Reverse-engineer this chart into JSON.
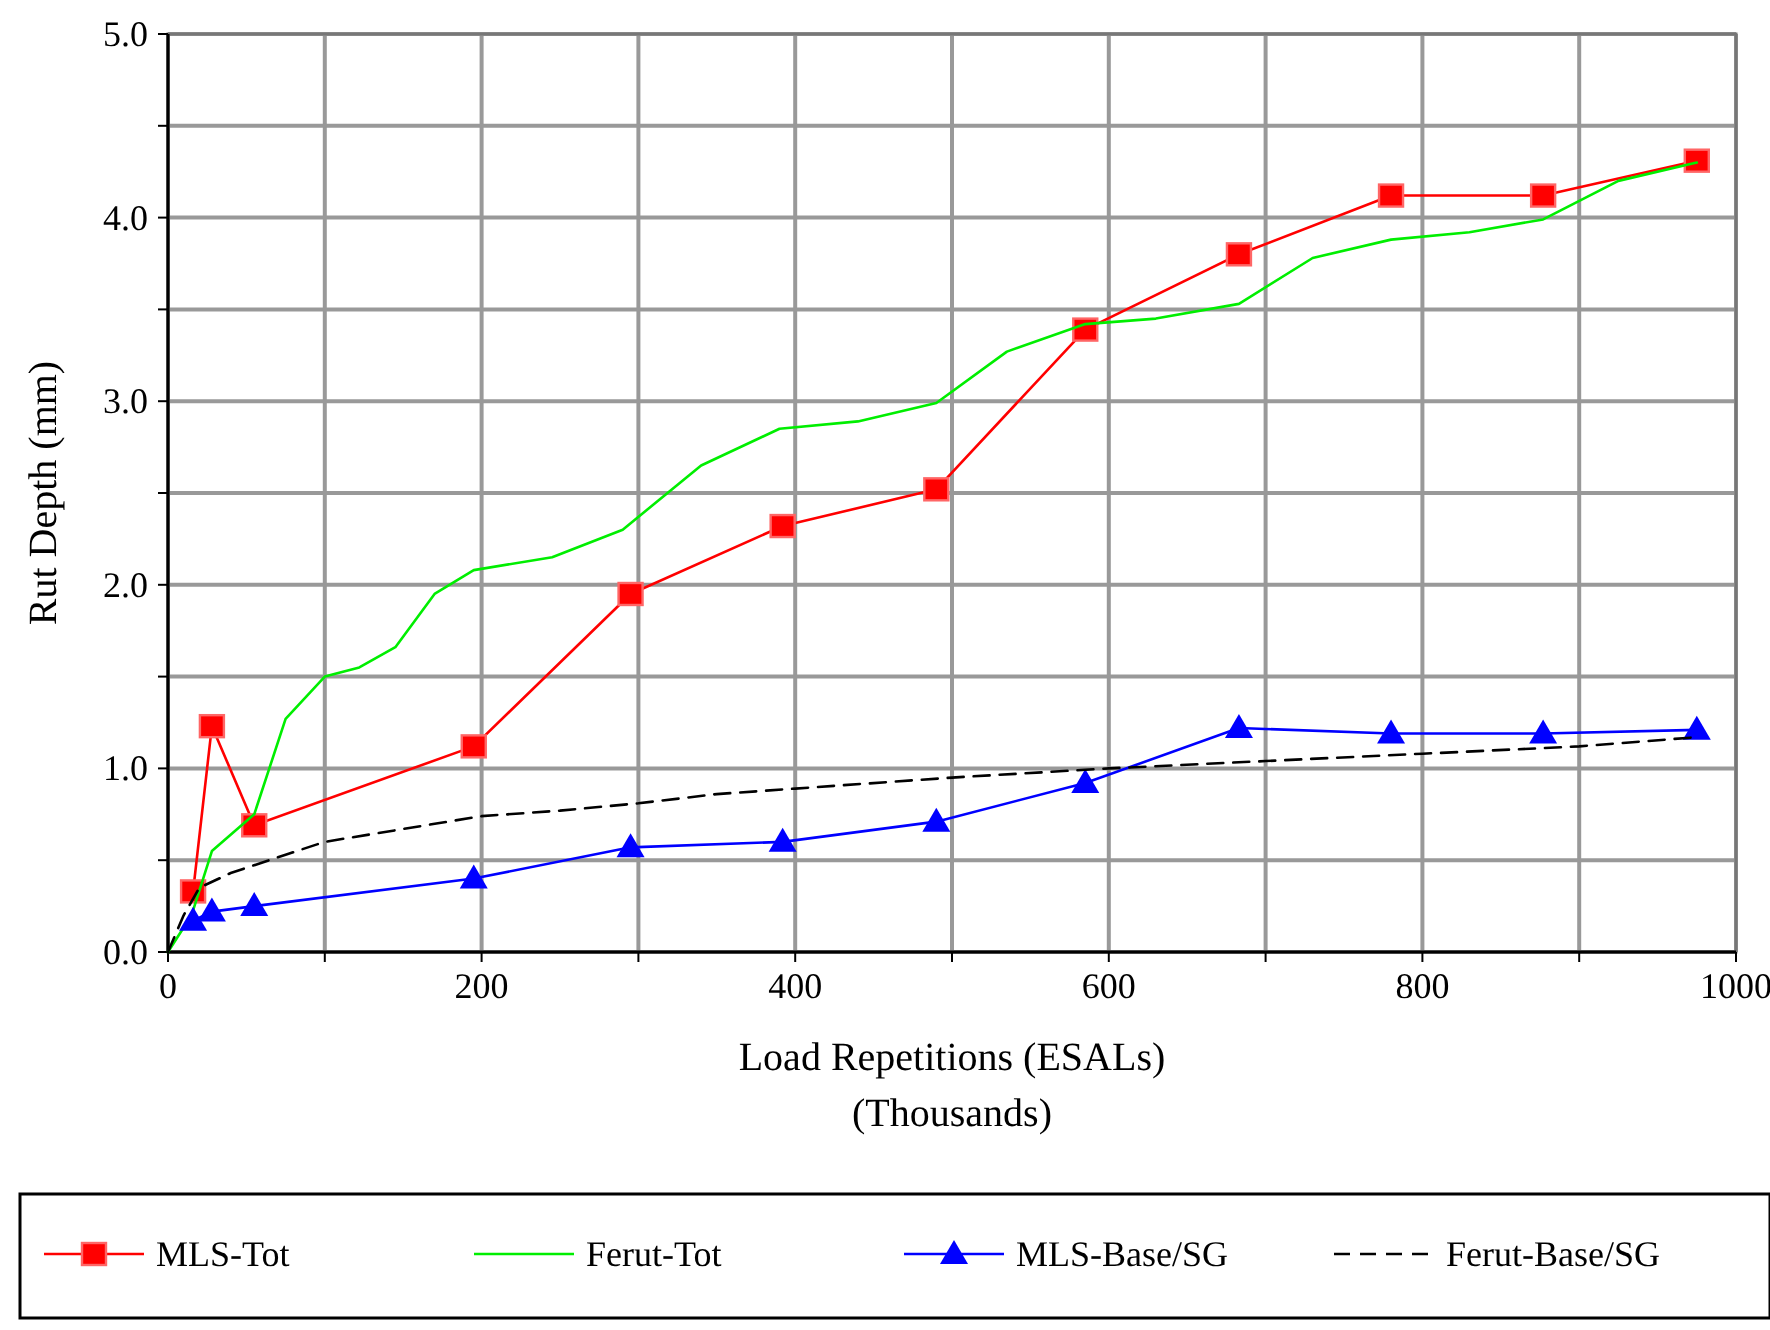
{
  "chart_data": {
    "type": "line",
    "xlabel": "Load Repetitions (ESALs)\n(Thousands)",
    "ylabel": "Rut Depth (mm)",
    "xlim": [
      0,
      1000
    ],
    "ylim": [
      0,
      5
    ],
    "xticks": [
      0,
      {
        "value": 100,
        "label": null
      },
      200,
      {
        "value": 300,
        "label": null
      },
      400,
      {
        "value": 500,
        "label": null
      },
      600,
      {
        "value": 700,
        "label": null
      },
      800,
      {
        "value": 900,
        "label": null
      },
      1000
    ],
    "yticks": [
      {
        "value": 0,
        "label": "0.0"
      },
      {
        "value": 0.5,
        "label": null
      },
      {
        "value": 1,
        "label": "1.0"
      },
      {
        "value": 1.5,
        "label": null
      },
      {
        "value": 2,
        "label": "2.0"
      },
      {
        "value": 2.5,
        "label": null
      },
      {
        "value": 3,
        "label": "3.0"
      },
      {
        "value": 3.5,
        "label": null
      },
      {
        "value": 4,
        "label": "4.0"
      },
      {
        "value": 4.5,
        "label": null
      },
      {
        "value": 5,
        "label": "5.0"
      }
    ],
    "grid": true,
    "legend": "bottom",
    "series": [
      {
        "name": "MLS-Tot",
        "color": "#ff0000",
        "marker": "square",
        "line_style": "solid",
        "x": [
          16,
          28,
          55,
          195,
          295,
          392,
          490,
          585,
          683,
          780,
          877,
          975
        ],
        "values": [
          0.33,
          1.23,
          0.69,
          1.12,
          1.95,
          2.32,
          2.52,
          3.39,
          3.8,
          4.12,
          4.12,
          4.31
        ]
      },
      {
        "name": "Ferut-Tot",
        "color": "#00ee00",
        "marker": "none",
        "line_style": "solid",
        "x": [
          0,
          15,
          28,
          55,
          75,
          100,
          122,
          145,
          170,
          195,
          245,
          290,
          340,
          390,
          440,
          490,
          535,
          585,
          630,
          683,
          730,
          780,
          830,
          877,
          925,
          975
        ],
        "values": [
          0,
          0.2,
          0.55,
          0.75,
          1.27,
          1.5,
          1.55,
          1.66,
          1.95,
          2.08,
          2.15,
          2.3,
          2.65,
          2.85,
          2.89,
          2.99,
          3.27,
          3.42,
          3.45,
          3.53,
          3.78,
          3.88,
          3.92,
          3.99,
          4.2,
          4.3
        ]
      },
      {
        "name": "MLS-Base/SG",
        "color": "#0000ff",
        "marker": "triangle",
        "line_style": "solid",
        "x": [
          16,
          28,
          55,
          195,
          295,
          392,
          490,
          585,
          683,
          780,
          877,
          975
        ],
        "values": [
          0.17,
          0.22,
          0.25,
          0.4,
          0.57,
          0.6,
          0.71,
          0.92,
          1.22,
          1.19,
          1.19,
          1.21
        ]
      },
      {
        "name": "Ferut-Base/SG",
        "color": "#000000",
        "marker": "none",
        "line_style": "dashed",
        "x": [
          0,
          10,
          20,
          40,
          75,
          100,
          150,
          200,
          250,
          300,
          350,
          400,
          500,
          600,
          700,
          800,
          900,
          975
        ],
        "values": [
          0,
          0.2,
          0.35,
          0.43,
          0.53,
          0.6,
          0.67,
          0.74,
          0.77,
          0.81,
          0.86,
          0.89,
          0.95,
          1.0,
          1.04,
          1.08,
          1.12,
          1.17
        ]
      }
    ]
  }
}
